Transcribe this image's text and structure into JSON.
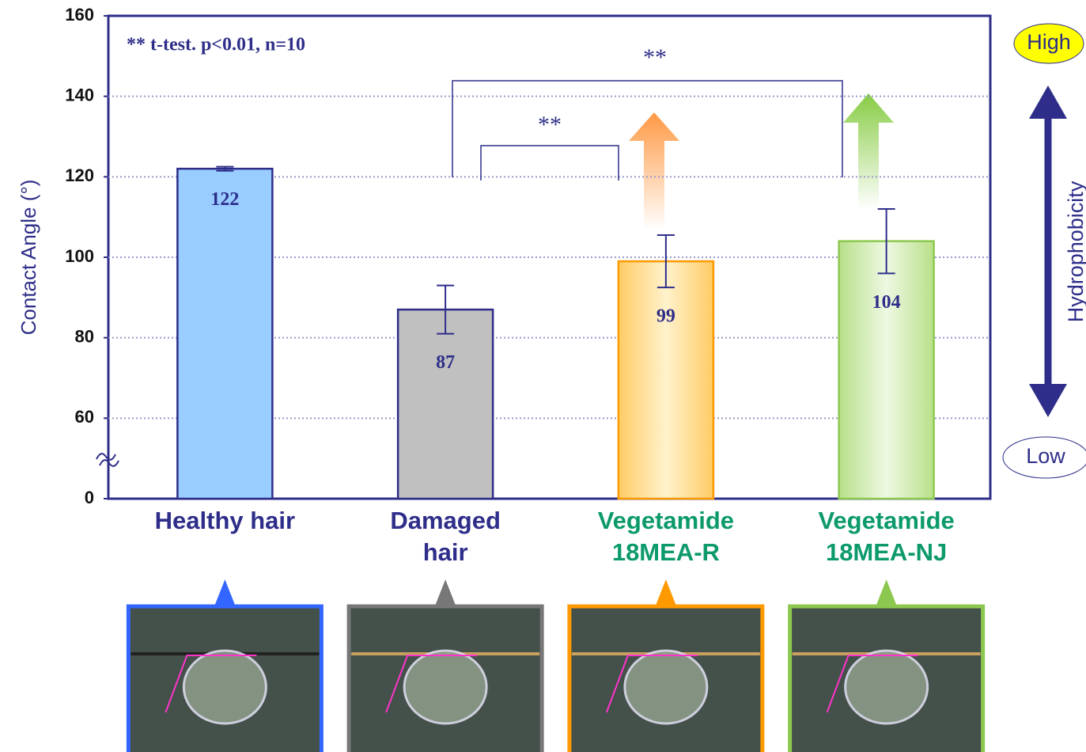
{
  "chart_data": {
    "type": "bar",
    "y_label": "Contact Angle (°)",
    "annotation": "** t-test.  p<0.01, n=10",
    "categories": [
      "Healthy hair",
      "Damaged hair",
      "Vegetamide 18MEA-R",
      "Vegetamide 18MEA-NJ"
    ],
    "category_colors": [
      "#2e2e8a",
      "#2e2e8a",
      "#0c9a6c",
      "#0c9a6c"
    ],
    "values": [
      122,
      87,
      99,
      104
    ],
    "errors": [
      0.5,
      6,
      6.5,
      8
    ],
    "colors": [
      "#99ccff",
      "#c0c0c0",
      "#ffcc66",
      "#b8e08a"
    ],
    "border_colors": [
      "#2e2e8a",
      "#2e2e8a",
      "#ff9900",
      "#8cc850"
    ],
    "ylim": [
      0,
      160
    ],
    "yticks": [
      0,
      60,
      80,
      100,
      120,
      140,
      160
    ],
    "axis_break": [
      0,
      40
    ],
    "grid": true,
    "significance": [
      "**",
      "**"
    ],
    "scale_labels": {
      "high": "High",
      "low": "Low",
      "title": "Hydrophobicity"
    }
  }
}
